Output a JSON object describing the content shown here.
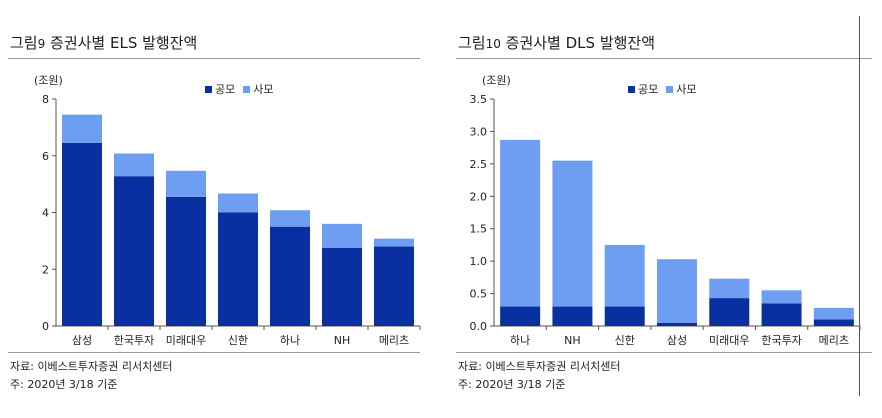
{
  "colors": {
    "public": "#0a2fa0",
    "private": "#6e9ef2",
    "axis": "#555555"
  },
  "legend": {
    "public": "공모",
    "private": "사모"
  },
  "left": {
    "title_prefix": "그림",
    "title_num": "9",
    "title_text": " 증권사별 ELS 발행잔액",
    "unit": "(조원)",
    "source": "자료: 이베스트투자증권 리서치센터",
    "note": "주: 2020년 3/18 기준"
  },
  "right": {
    "title_prefix": "그림",
    "title_num": "10",
    "title_text": " 증권사별 DLS 발행잔액",
    "unit": "(조원)",
    "source": "자료: 이베스트투자증권 리서치센터",
    "note": "주: 2020년 3/18 기준"
  },
  "chart_data": [
    {
      "type": "bar",
      "stacked": true,
      "title": "증권사별 ELS 발행잔액",
      "ylabel": "(조원)",
      "ylim": [
        0,
        8
      ],
      "yticks": [
        "0",
        "2",
        "4",
        "6",
        "8"
      ],
      "categories": [
        "삼성",
        "한국투자",
        "미래대우",
        "신한",
        "하나",
        "NH",
        "메리츠"
      ],
      "series": [
        {
          "name": "공모",
          "values": [
            6.45,
            5.28,
            4.55,
            4.0,
            3.5,
            2.75,
            2.8
          ]
        },
        {
          "name": "사모",
          "values": [
            1.0,
            0.8,
            0.92,
            0.67,
            0.58,
            0.85,
            0.28
          ]
        }
      ],
      "legend_position": "top-right"
    },
    {
      "type": "bar",
      "stacked": true,
      "title": "증권사별 DLS 발행잔액",
      "ylabel": "(조원)",
      "ylim": [
        0,
        3.5
      ],
      "yticks": [
        "0.0",
        "0.5",
        "1.0",
        "1.5",
        "2.0",
        "2.5",
        "3.0",
        "3.5"
      ],
      "categories": [
        "하나",
        "NH",
        "신한",
        "삼성",
        "미래대우",
        "한국투자",
        "메리츠"
      ],
      "series": [
        {
          "name": "공모",
          "values": [
            0.3,
            0.3,
            0.3,
            0.05,
            0.43,
            0.35,
            0.1
          ]
        },
        {
          "name": "사모",
          "values": [
            2.57,
            2.25,
            0.95,
            0.98,
            0.3,
            0.2,
            0.18
          ]
        }
      ],
      "legend_position": "top-right"
    }
  ]
}
